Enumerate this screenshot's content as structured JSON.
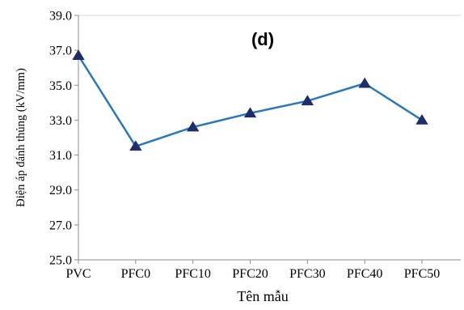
{
  "chart_data": {
    "type": "line",
    "annotation": "(d)",
    "xlabel": "Tên mẫu",
    "ylabel": "Điện áp đánh thủng (kV/mm)",
    "categories": [
      "PVC",
      "PFC0",
      "PFC10",
      "PFC20",
      "PFC30",
      "PFC40",
      "PFC50"
    ],
    "series": [
      {
        "values": [
          36.7,
          31.5,
          32.6,
          33.4,
          34.1,
          35.1,
          33.0
        ]
      }
    ],
    "ylim": [
      25.0,
      39.0
    ],
    "yticks": [
      "25.0",
      "27.0",
      "29.0",
      "31.0",
      "33.0",
      "35.0",
      "37.0",
      "39.0"
    ],
    "grid": false,
    "legend": "none",
    "line_color": "#2579C1",
    "marker": "triangle",
    "marker_color": "#1F2D6B"
  }
}
